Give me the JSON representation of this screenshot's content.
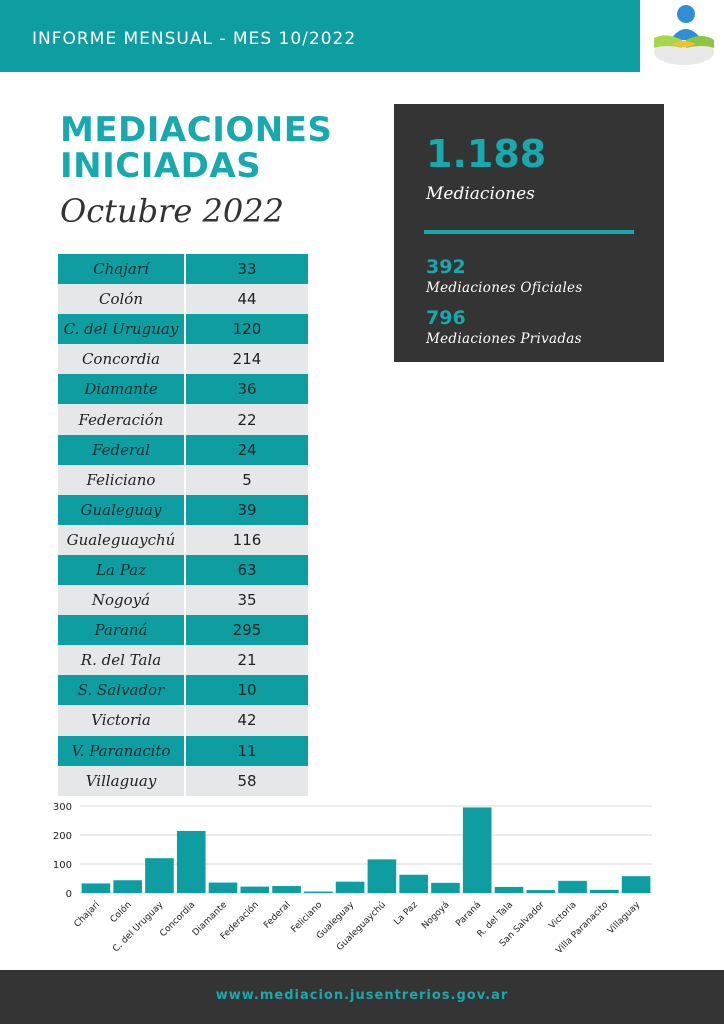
{
  "header": {
    "title": "INFORME MENSUAL - MES 10/2022"
  },
  "title": {
    "line1": "MEDIACIONES",
    "line2": "INICIADAS",
    "subtitle": "Octubre 2022"
  },
  "stats": {
    "total": "1.188",
    "total_label": "Mediaciones",
    "oficiales": "392",
    "oficiales_label": "Mediaciones Oficiales",
    "privadas": "796",
    "privadas_label": "Mediaciones Privadas"
  },
  "table": {
    "rows": [
      {
        "name": "Chajarí",
        "value": "33"
      },
      {
        "name": "Colón",
        "value": "44"
      },
      {
        "name": "C. del Uruguay",
        "value": "120"
      },
      {
        "name": "Concordia",
        "value": "214"
      },
      {
        "name": "Diamante",
        "value": "36"
      },
      {
        "name": "Federación",
        "value": "22"
      },
      {
        "name": "Federal",
        "value": "24"
      },
      {
        "name": "Feliciano",
        "value": "5"
      },
      {
        "name": "Gualeguay",
        "value": "39"
      },
      {
        "name": "Gualeguaychú",
        "value": "116"
      },
      {
        "name": "La Paz",
        "value": "63"
      },
      {
        "name": "Nogoyá",
        "value": "35"
      },
      {
        "name": "Paraná",
        "value": "295"
      },
      {
        "name": "R. del Tala",
        "value": "21"
      },
      {
        "name": "S. Salvador",
        "value": "10"
      },
      {
        "name": "Victoria",
        "value": "42"
      },
      {
        "name": "V. Paranacito",
        "value": "11"
      },
      {
        "name": "Villaguay",
        "value": "58"
      }
    ]
  },
  "chart_data": {
    "type": "bar",
    "categories": [
      "Chajarí",
      "Colón",
      "C. del Uruguay",
      "Concordia",
      "Diamante",
      "Federación",
      "Federal",
      "Feliciano",
      "Gualeguay",
      "Gualeguaychú",
      "La Paz",
      "Nogoyá",
      "Paraná",
      "R. del Tala",
      "San Salvador",
      "Victoria",
      "Villa Paranacito",
      "Villaguay"
    ],
    "values": [
      33,
      44,
      120,
      214,
      36,
      22,
      24,
      5,
      39,
      116,
      63,
      35,
      295,
      21,
      10,
      42,
      11,
      58
    ],
    "yticks": [
      0,
      100,
      200,
      300
    ],
    "ylim": [
      0,
      300
    ],
    "grid": true,
    "title": "",
    "xlabel": "",
    "ylabel": ""
  },
  "footer": {
    "url": "www.mediacion.jusentrerios.gov.ar"
  },
  "colors": {
    "teal": "#0e9ea1",
    "accent": "#17a9ad",
    "dark": "#343434",
    "grey_row": "#e6e7e8"
  },
  "icons": {
    "logo": "mediation-handshake-logo"
  }
}
